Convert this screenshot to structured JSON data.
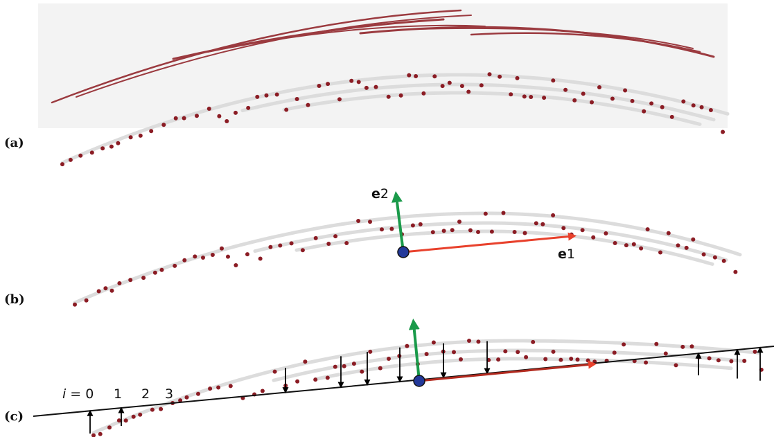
{
  "panels": [
    {
      "label": "(a)"
    },
    {
      "label": "(b)"
    },
    {
      "label": "(c)"
    }
  ],
  "axes": {
    "e1": {
      "symbol": "e",
      "index": "1"
    },
    "e2": {
      "symbol": "e",
      "index": "2"
    }
  },
  "indices": [
    {
      "symbol": "i",
      "text": "= 0"
    },
    "1",
    "2",
    "3"
  ]
}
